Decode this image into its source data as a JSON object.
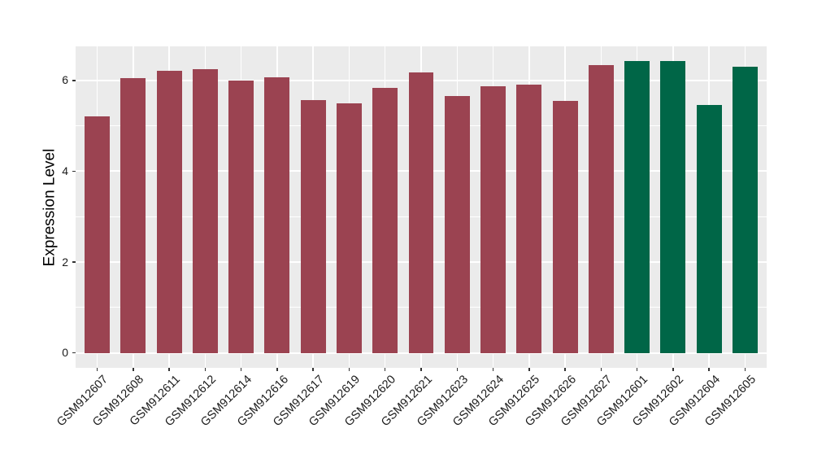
{
  "figure": {
    "background_color": "#FFFFFF",
    "panel_background_color": "#EBEBEB",
    "gridline_color": "#FFFFFF",
    "tick_mark_color": "#333333",
    "axis_text_color": "#1A1A1A",
    "axis_title_color": "#000000"
  },
  "chart_data": {
    "type": "bar",
    "title": "",
    "xlabel": "",
    "ylabel": "Expression Level",
    "legend": "none",
    "grid": true,
    "ylim": [
      -0.33,
      6.75
    ],
    "yticks": [
      0,
      2,
      4,
      6
    ],
    "yticks_minor": [
      1,
      3,
      5
    ],
    "categories": [
      "GSM912607",
      "GSM912608",
      "GSM912611",
      "GSM912612",
      "GSM912614",
      "GSM912616",
      "GSM912617",
      "GSM912619",
      "GSM912620",
      "GSM912621",
      "GSM912623",
      "GSM912624",
      "GSM912625",
      "GSM912626",
      "GSM912627",
      "GSM912601",
      "GSM912602",
      "GSM912604",
      "GSM912605"
    ],
    "values": [
      5.2,
      6.05,
      6.21,
      6.25,
      6.0,
      6.07,
      5.56,
      5.49,
      5.83,
      6.18,
      5.66,
      5.88,
      5.91,
      5.55,
      6.34,
      6.42,
      6.42,
      5.46,
      6.31
    ],
    "bar_colors": [
      "#9B4351",
      "#9B4351",
      "#9B4351",
      "#9B4351",
      "#9B4351",
      "#9B4351",
      "#9B4351",
      "#9B4351",
      "#9B4351",
      "#9B4351",
      "#9B4351",
      "#9B4351",
      "#9B4351",
      "#9B4351",
      "#9B4351",
      "#006647",
      "#006647",
      "#006647",
      "#006647"
    ],
    "group_colors": {
      "maroon_group": "#9B4351",
      "green_group": "#006647"
    }
  }
}
